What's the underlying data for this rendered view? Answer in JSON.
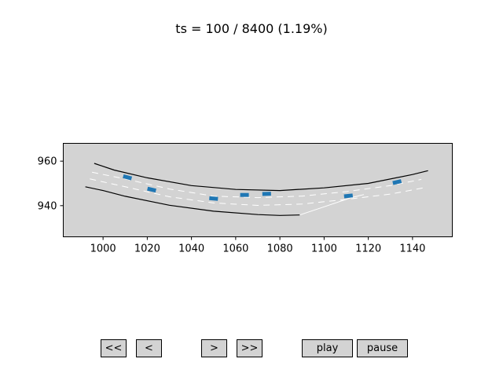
{
  "title": "ts = 100 / 8400 (1.19%)",
  "buttons": {
    "first": "<<",
    "prev": "<",
    "next": ">",
    "last": ">>",
    "play": "play",
    "pause": "pause"
  },
  "colors": {
    "axes_bg": "#d3d3d3",
    "road_edge": "#000000",
    "lane_line": "#ffffff",
    "vehicle": "#1f77b4"
  },
  "chart_data": {
    "type": "scatter",
    "xlim": [
      982,
      1158
    ],
    "ylim": [
      926,
      968
    ],
    "xticks": [
      "1000",
      "1020",
      "1040",
      "1060",
      "1080",
      "1100",
      "1120",
      "1140"
    ],
    "yticks": [
      "940",
      "960"
    ],
    "road_edges": [
      [
        [
          996,
          959
        ],
        [
          1005,
          956
        ],
        [
          1020,
          952.5
        ],
        [
          1040,
          949
        ],
        [
          1060,
          947.3
        ],
        [
          1080,
          946.8
        ],
        [
          1100,
          948
        ],
        [
          1120,
          950
        ],
        [
          1140,
          954
        ],
        [
          1147,
          955.7
        ]
      ],
      [
        [
          992,
          948.5
        ],
        [
          1000,
          946.8
        ],
        [
          1010,
          944.2
        ],
        [
          1030,
          940.2
        ],
        [
          1050,
          937.5
        ],
        [
          1070,
          936
        ],
        [
          1080,
          935.6
        ],
        [
          1089,
          935.8
        ]
      ]
    ],
    "lane_dividers": [
      [
        [
          995,
          955
        ],
        [
          1010,
          952
        ],
        [
          1030,
          947.5
        ],
        [
          1050,
          944.3
        ],
        [
          1070,
          943.6
        ],
        [
          1090,
          944.3
        ],
        [
          1110,
          946.3
        ],
        [
          1130,
          949
        ],
        [
          1144,
          951.8
        ]
      ],
      [
        [
          994,
          952
        ],
        [
          1010,
          948.5
        ],
        [
          1030,
          944
        ],
        [
          1050,
          941.2
        ],
        [
          1070,
          940.1
        ],
        [
          1090,
          940.7
        ],
        [
          1110,
          942.8
        ],
        [
          1130,
          945.2
        ],
        [
          1145,
          948
        ]
      ]
    ],
    "merge_line": [
      [
        1089,
        935.8
      ],
      [
        1100,
        939.5
      ],
      [
        1112,
        943.5
      ],
      [
        1118,
        945
      ]
    ],
    "vehicles": [
      {
        "x": 1011,
        "y": 952.7,
        "angle": 15
      },
      {
        "x": 1022,
        "y": 947.2,
        "angle": 13
      },
      {
        "x": 1050,
        "y": 943.2,
        "angle": 5
      },
      {
        "x": 1064,
        "y": 944.8,
        "angle": 0
      },
      {
        "x": 1074,
        "y": 945.3,
        "angle": -2
      },
      {
        "x": 1111,
        "y": 944.4,
        "angle": -6
      },
      {
        "x": 1133,
        "y": 950.6,
        "angle": -13
      }
    ]
  }
}
